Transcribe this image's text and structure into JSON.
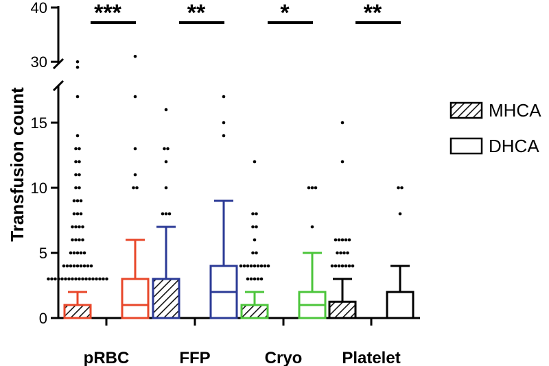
{
  "chart_data": {
    "type": "box",
    "title": "",
    "xlabel": "",
    "ylabel": "Transfusion count",
    "y_axis": {
      "lower_segment": {
        "range": [
          0,
          19
        ],
        "ticks": [
          0,
          5,
          10,
          15
        ]
      },
      "upper_segment": {
        "range": [
          28,
          40
        ],
        "ticks": [
          30,
          40
        ]
      },
      "broken": true
    },
    "categories": [
      "pRBC",
      "FFP",
      "Cryo",
      "Platelet"
    ],
    "legend": [
      {
        "name": "MHCA",
        "fill": "hatched"
      },
      {
        "name": "DHCA",
        "fill": "open"
      }
    ],
    "significance": [
      "***",
      "**",
      "*",
      "**"
    ],
    "colors": {
      "pRBC": "#e8472a",
      "FFP": "#2b3a96",
      "Cryo": "#4cc53b",
      "Platelet": "#000000",
      "axis": "#000000"
    },
    "boxes": [
      {
        "category": "pRBC",
        "group": "MHCA",
        "whisker_low": 0,
        "q1": 0,
        "median": 0,
        "q3": 1,
        "whisker_high": 2,
        "outliers": [
          3,
          3,
          3,
          3,
          3,
          3,
          3,
          3,
          3,
          3,
          3,
          3,
          3,
          3,
          3,
          3,
          3,
          3,
          4,
          4,
          4,
          4,
          4,
          4,
          4,
          4,
          4,
          5,
          5,
          5,
          5,
          5,
          6,
          6,
          6,
          6,
          7,
          7,
          7,
          7,
          8,
          8,
          8,
          9,
          9,
          9,
          10,
          10,
          11,
          11,
          12,
          12,
          13,
          13,
          14,
          17,
          29,
          30
        ]
      },
      {
        "category": "pRBC",
        "group": "DHCA",
        "whisker_low": 0,
        "q1": 0,
        "median": 1,
        "q3": 3,
        "whisker_high": 6,
        "outliers": [
          10,
          10,
          11,
          13,
          17,
          31
        ]
      },
      {
        "category": "FFP",
        "group": "MHCA",
        "whisker_low": 0,
        "q1": 0,
        "median": 0,
        "q3": 3,
        "whisker_high": 7,
        "outliers": [
          8,
          8,
          8,
          10,
          12,
          13,
          13,
          16
        ]
      },
      {
        "category": "FFP",
        "group": "DHCA",
        "whisker_low": 0,
        "q1": 0,
        "median": 2,
        "q3": 4,
        "whisker_high": 9,
        "outliers": [
          14,
          15,
          17
        ]
      },
      {
        "category": "Cryo",
        "group": "MHCA",
        "whisker_low": 0,
        "q1": 0,
        "median": 0,
        "q3": 1,
        "whisker_high": 2,
        "outliers": [
          3,
          3,
          3,
          3,
          3,
          4,
          4,
          4,
          4,
          4,
          4,
          4,
          4,
          4,
          5,
          5,
          6,
          7,
          7,
          8,
          8,
          12
        ]
      },
      {
        "category": "Cryo",
        "group": "DHCA",
        "whisker_low": 0,
        "q1": 0,
        "median": 1,
        "q3": 2,
        "whisker_high": 5,
        "outliers": [
          7,
          10,
          10,
          10
        ]
      },
      {
        "category": "Platelet",
        "group": "MHCA",
        "whisker_low": 0,
        "q1": 0,
        "median": 0,
        "q3": 1.25,
        "whisker_high": 3,
        "outliers": [
          4,
          4,
          4,
          4,
          4,
          4,
          4,
          5,
          5,
          5,
          5,
          6,
          6,
          6,
          6,
          6,
          12,
          15
        ]
      },
      {
        "category": "Platelet",
        "group": "DHCA",
        "whisker_low": 0,
        "q1": 0,
        "median": 2,
        "q3": 2,
        "whisker_high": 4,
        "outliers": [
          8,
          10,
          10
        ]
      }
    ]
  }
}
